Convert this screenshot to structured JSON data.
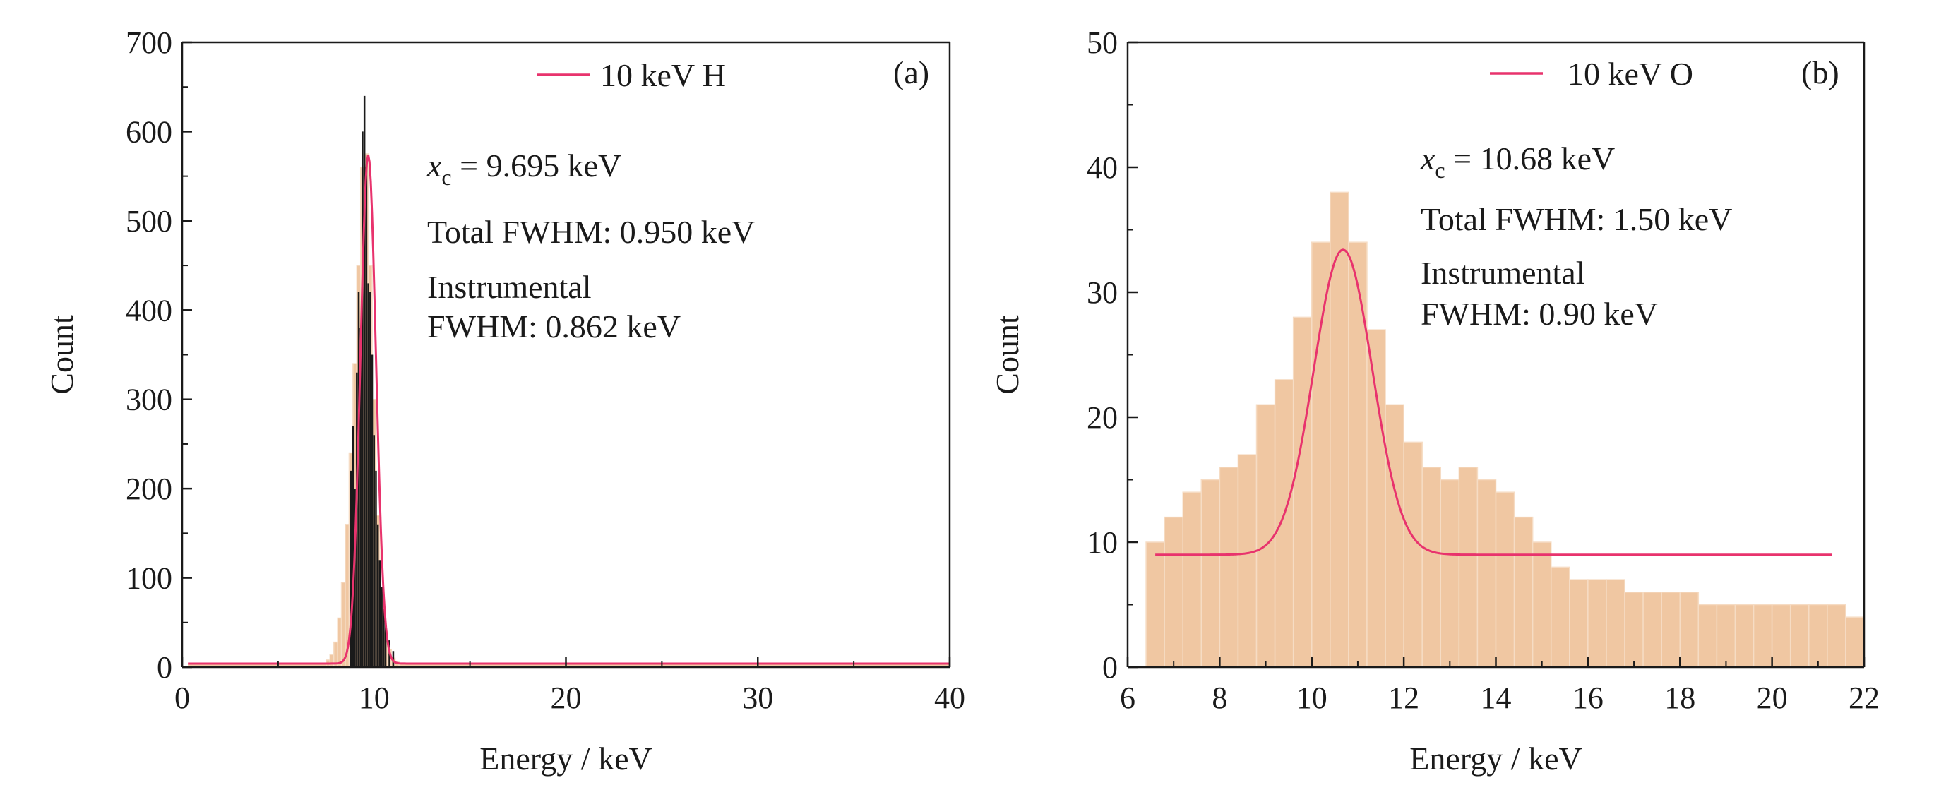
{
  "chart_data": [
    {
      "panel": "(a)",
      "type": "bar",
      "xlabel": "Energy / keV",
      "ylabel": "Count",
      "xlim": [
        0,
        40
      ],
      "ylim": [
        0,
        700
      ],
      "xticks": [
        0,
        10,
        20,
        30,
        40
      ],
      "yticks": [
        0,
        100,
        200,
        300,
        400,
        500,
        600,
        700
      ],
      "legend": {
        "label": "10 keV H",
        "placement": "top-right",
        "color": "#e8336d"
      },
      "annotations": {
        "xc_var": "x",
        "xc_sub": "c",
        "xc_value": " = 9.695 keV",
        "total_fwhm": "Total FWHM: 0.950 keV",
        "instr_line1": "Instrumental",
        "instr_line2": "FWHM: 0.862 keV"
      },
      "colors": {
        "histogram_fill": "#f0c7a2",
        "spectrum_line": "#1a1a1a",
        "fit_line": "#e8336d"
      },
      "histogram": {
        "x": [
          7.6,
          7.8,
          8.0,
          8.2,
          8.4,
          8.6,
          8.8,
          9.0,
          9.2,
          9.4,
          9.6,
          9.8,
          10.0,
          10.2,
          10.4,
          10.6,
          10.8,
          11.0,
          11.2
        ],
        "values": [
          8,
          14,
          28,
          55,
          95,
          160,
          240,
          340,
          450,
          560,
          575,
          450,
          300,
          170,
          85,
          40,
          20,
          10,
          6
        ]
      },
      "spectrum_peak": {
        "x": [
          8.8,
          8.9,
          9.0,
          9.1,
          9.2,
          9.3,
          9.4,
          9.5,
          9.6,
          9.7,
          9.8,
          9.9,
          10.0,
          10.1,
          10.2,
          10.3,
          10.4,
          10.5,
          10.6,
          10.8,
          11.0
        ],
        "values": [
          220,
          270,
          200,
          330,
          420,
          380,
          600,
          640,
          560,
          430,
          420,
          350,
          260,
          220,
          160,
          120,
          90,
          65,
          50,
          30,
          18
        ]
      },
      "fit": {
        "baseline": 4,
        "amplitude": 570,
        "center": 9.695,
        "fwhm": 0.95,
        "x_start": 0.3,
        "x_end": 40
      },
      "background": {
        "baseline": 4,
        "x_start": 0.3,
        "x_end": 40
      }
    },
    {
      "panel": "(b)",
      "type": "bar",
      "xlabel": "Energy / keV",
      "ylabel": "Count",
      "xlim": [
        6,
        22
      ],
      "ylim": [
        0,
        50
      ],
      "xticks": [
        6,
        8,
        10,
        12,
        14,
        16,
        18,
        20,
        22
      ],
      "yticks": [
        0,
        10,
        20,
        30,
        40,
        50
      ],
      "legend": {
        "label": "10 keV O",
        "placement": "top-right",
        "color": "#e8336d"
      },
      "annotations": {
        "xc_var": "x",
        "xc_sub": "c",
        "xc_value": " = 10.68 keV",
        "total_fwhm": "Total FWHM: 1.50 keV",
        "instr_line1": "Instrumental",
        "instr_line2": "FWHM: 0.90 keV"
      },
      "colors": {
        "histogram_fill": "#f0c7a2",
        "fit_line": "#e8336d"
      },
      "histogram": {
        "x": [
          6.6,
          7.0,
          7.4,
          7.8,
          8.2,
          8.6,
          9.0,
          9.4,
          9.8,
          10.2,
          10.6,
          11.0,
          11.4,
          11.8,
          12.2,
          12.6,
          13.0,
          13.4,
          13.8,
          14.2,
          14.6,
          15.0,
          15.4,
          15.8,
          16.2,
          16.6,
          17.0,
          17.4,
          17.8,
          18.2,
          18.6,
          19.0,
          19.4,
          19.8,
          20.2,
          20.6,
          21.0,
          21.4,
          21.8
        ],
        "values": [
          10,
          12,
          14,
          15,
          16,
          17,
          21,
          23,
          28,
          34,
          38,
          34,
          27,
          21,
          18,
          16,
          15,
          16,
          15,
          14,
          12,
          10,
          8,
          7,
          7,
          7,
          6,
          6,
          6,
          6,
          5,
          5,
          5,
          5,
          5,
          5,
          5,
          5,
          4
        ]
      },
      "fit": {
        "baseline": 9,
        "amplitude": 24.4,
        "center": 10.68,
        "fwhm": 1.5,
        "x_start": 6.6,
        "x_end": 21.3
      }
    }
  ]
}
